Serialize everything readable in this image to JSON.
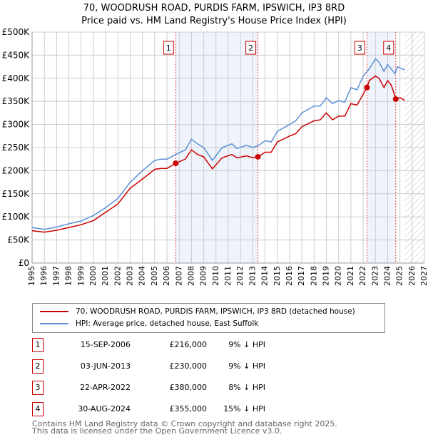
{
  "title_line1": "70, WOODRUSH ROAD, PURDIS FARM, IPSWICH, IP3 8RD",
  "title_line2": "Price paid vs. HM Land Registry's House Price Index (HPI)",
  "chart_data": {
    "type": "line",
    "title": "70, WOODRUSH ROAD, PURDIS FARM, IPSWICH, IP3 8RD — Price paid vs. HM Land Registry's House Price Index (HPI)",
    "xlim": [
      1995,
      2027
    ],
    "ylim": [
      0,
      500000
    ],
    "x_ticks": [
      "1995",
      "1996",
      "1997",
      "1998",
      "1999",
      "2000",
      "2001",
      "2002",
      "2003",
      "2004",
      "2005",
      "2006",
      "2007",
      "2008",
      "2009",
      "2010",
      "2011",
      "2012",
      "2013",
      "2014",
      "2015",
      "2016",
      "2017",
      "2018",
      "2019",
      "2020",
      "2021",
      "2022",
      "2023",
      "2024",
      "2025",
      "2026",
      "2027"
    ],
    "y_ticks": [
      {
        "v": 0,
        "label": "£0"
      },
      {
        "v": 50000,
        "label": "£50K"
      },
      {
        "v": 100000,
        "label": "£100K"
      },
      {
        "v": 150000,
        "label": "£150K"
      },
      {
        "v": 200000,
        "label": "£200K"
      },
      {
        "v": 250000,
        "label": "£250K"
      },
      {
        "v": 300000,
        "label": "£300K"
      },
      {
        "v": 350000,
        "label": "£350K"
      },
      {
        "v": 400000,
        "label": "£400K"
      },
      {
        "v": 450000,
        "label": "£450K"
      },
      {
        "v": 500000,
        "label": "£500K"
      }
    ],
    "shaded_ranges": [
      [
        2006.71,
        2013.42
      ],
      [
        2022.31,
        2024.66
      ]
    ],
    "forecast_hatch_from": 2025.4,
    "series": [
      {
        "name": "70, WOODRUSH ROAD, PURDIS FARM, IPSWICH, IP3 8RD (detached house)",
        "color": "#cc0000",
        "x": [
          1995,
          1996,
          1997,
          1998,
          1999,
          2000,
          2001,
          2002,
          2003,
          2004,
          2005,
          2005.5,
          2006,
          2006.71,
          2007.5,
          2008,
          2008.5,
          2009,
          2009.7,
          2010.5,
          2011.3,
          2011.7,
          2012.5,
          2013,
          2013.42,
          2014,
          2014.5,
          2015,
          2016,
          2016.5,
          2017,
          2018,
          2018.5,
          2019,
          2019.5,
          2020,
          2020.5,
          2021,
          2021.5,
          2022.31,
          2022.5,
          2023,
          2023.3,
          2023.7,
          2024,
          2024.3,
          2024.66,
          2025,
          2025.4
        ],
        "values": [
          70000,
          67000,
          71000,
          77000,
          83000,
          92000,
          110000,
          128000,
          162000,
          182000,
          203000,
          205000,
          205000,
          216000,
          225000,
          245000,
          235000,
          230000,
          204000,
          228000,
          235000,
          228000,
          232000,
          228000,
          230000,
          240000,
          240000,
          262000,
          275000,
          280000,
          295000,
          308000,
          310000,
          325000,
          310000,
          318000,
          318000,
          345000,
          342000,
          380000,
          395000,
          405000,
          400000,
          380000,
          395000,
          385000,
          355000,
          358000,
          352000
        ]
      },
      {
        "name": "HPI: Average price, detached house, East Suffolk",
        "color": "#5b8fd4",
        "x": [
          1995,
          1996,
          1997,
          1998,
          1999,
          2000,
          2001,
          2002,
          2003,
          2004,
          2005,
          2005.5,
          2006,
          2006.71,
          2007.5,
          2008,
          2008.5,
          2009,
          2009.7,
          2010.5,
          2011.3,
          2011.7,
          2012.5,
          2013,
          2013.5,
          2014,
          2014.5,
          2015,
          2016,
          2016.5,
          2017,
          2018,
          2018.5,
          2019,
          2019.5,
          2020,
          2020.5,
          2021,
          2021.5,
          2022,
          2022.5,
          2023,
          2023.3,
          2023.7,
          2024,
          2024.3,
          2024.6,
          2024.8,
          2025.2,
          2025.4
        ],
        "values": [
          77000,
          73000,
          78000,
          85000,
          91000,
          103000,
          120000,
          140000,
          175000,
          200000,
          222000,
          225000,
          225000,
          235000,
          245000,
          268000,
          258000,
          250000,
          222000,
          250000,
          258000,
          248000,
          255000,
          250000,
          255000,
          265000,
          262000,
          285000,
          300000,
          308000,
          325000,
          340000,
          340000,
          358000,
          345000,
          352000,
          348000,
          380000,
          375000,
          405000,
          420000,
          442000,
          435000,
          415000,
          430000,
          420000,
          410000,
          425000,
          420000,
          418000
        ]
      }
    ],
    "sales": [
      {
        "n": "1",
        "x": 2006.71,
        "value": 216000
      },
      {
        "n": "2",
        "x": 2013.42,
        "value": 230000
      },
      {
        "n": "3",
        "x": 2022.31,
        "value": 380000
      },
      {
        "n": "4",
        "x": 2024.66,
        "value": 355000
      }
    ]
  },
  "legend": {
    "property": "70, WOODRUSH ROAD, PURDIS FARM, IPSWICH, IP3 8RD (detached house)",
    "hpi": "HPI: Average price, detached house, East Suffolk"
  },
  "transactions": [
    {
      "n": "1",
      "date": "15-SEP-2006",
      "price": "£216,000",
      "hpi": "9% ↓ HPI"
    },
    {
      "n": "2",
      "date": "03-JUN-2013",
      "price": "£230,000",
      "hpi": "9% ↓ HPI"
    },
    {
      "n": "3",
      "date": "22-APR-2022",
      "price": "£380,000",
      "hpi": "8% ↓ HPI"
    },
    {
      "n": "4",
      "date": "30-AUG-2024",
      "price": "£355,000",
      "hpi": "15% ↓ HPI"
    }
  ],
  "footer_line1": "Contains HM Land Registry data © Crown copyright and database right 2025.",
  "footer_line2": "This data is licensed under the Open Government Licence v3.0."
}
